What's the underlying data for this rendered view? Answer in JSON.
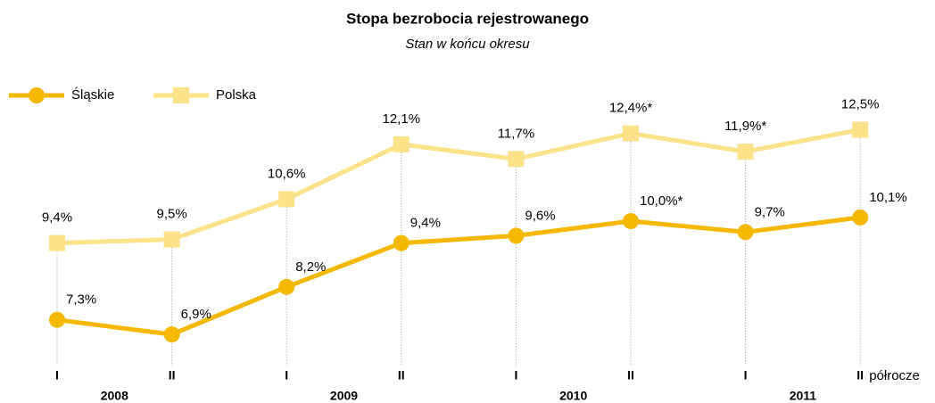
{
  "chart_data": {
    "type": "line",
    "title": "Stopa bezrobocia rejestrowanego",
    "subtitle": "Stan w końcu okresu",
    "categories": [
      "I",
      "II",
      "I",
      "II",
      "I",
      "II",
      "I",
      "II"
    ],
    "category_groups": [
      "2008",
      "2009",
      "2010",
      "2011"
    ],
    "x_axis_label": "półrocze",
    "legend": "top-left",
    "ylim": [
      6,
      13
    ],
    "series": [
      {
        "name": "Śląskie",
        "color": "#f5b800",
        "marker": "circle",
        "values": [
          7.3,
          6.9,
          8.2,
          9.4,
          9.6,
          10.0,
          9.7,
          10.1
        ],
        "value_labels": [
          "7,3%",
          "6,9%",
          "8,2%",
          "9,4%",
          "9,6%",
          "10,0%*",
          "9,7%",
          "10,1%"
        ]
      },
      {
        "name": "Polska",
        "color": "#fde28a",
        "marker": "square",
        "values": [
          9.4,
          9.5,
          10.6,
          12.1,
          11.7,
          12.4,
          11.9,
          12.5
        ],
        "value_labels": [
          "9,4%",
          "9,5%",
          "10,6%",
          "12,1%",
          "11,7%",
          "12,4%*",
          "11,9%*",
          "12,5%"
        ]
      }
    ]
  }
}
